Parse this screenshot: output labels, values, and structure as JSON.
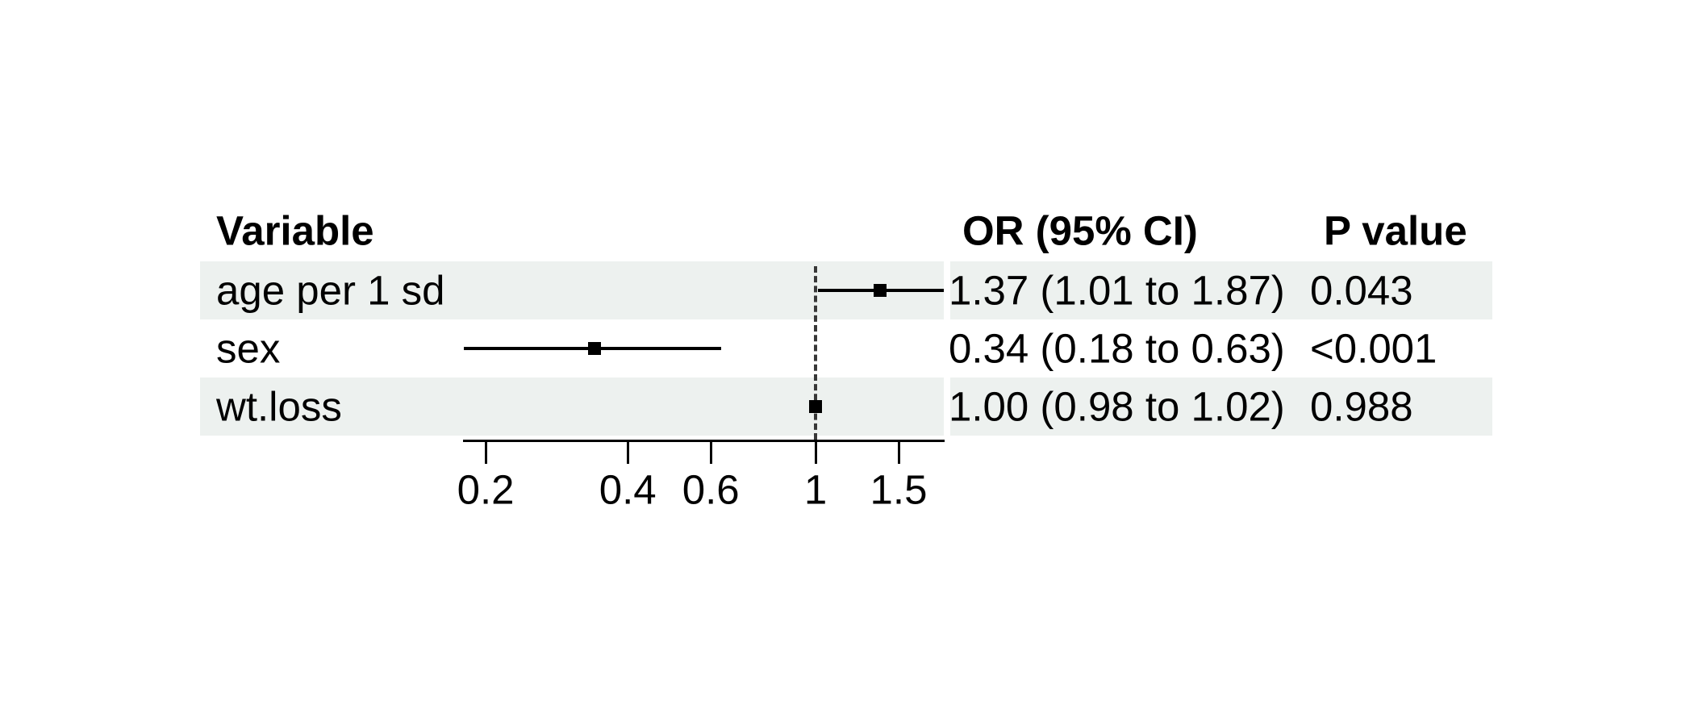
{
  "chart_data": {
    "type": "forest",
    "title": "",
    "columns": {
      "variable": "Variable",
      "or_ci": "OR (95% CI)",
      "p": "P value"
    },
    "rows": [
      {
        "variable": "age per 1 sd",
        "or": 1.37,
        "ci_low": 1.01,
        "ci_high": 1.87,
        "or_ci_label": "1.37 (1.01 to 1.87)",
        "p_label": "0.043",
        "shaded": true
      },
      {
        "variable": "sex",
        "or": 0.34,
        "ci_low": 0.18,
        "ci_high": 0.63,
        "or_ci_label": "0.34 (0.18 to 0.63)",
        "p_label": "<0.001",
        "shaded": false
      },
      {
        "variable": "wt.loss",
        "or": 1.0,
        "ci_low": 0.98,
        "ci_high": 1.02,
        "or_ci_label": "1.00 (0.98 to 1.02)",
        "p_label": "0.988",
        "shaded": true
      }
    ],
    "x_axis": {
      "scale": "log",
      "ticks": [
        0.2,
        0.4,
        0.6,
        1,
        1.5
      ],
      "tick_labels": [
        "0.2",
        "0.4",
        "0.6",
        "1",
        "1.5"
      ],
      "reference_line": 1
    },
    "legend": null,
    "colors": {
      "stripe": "#edf1ef",
      "line": "#000000",
      "marker": "#000000",
      "reference": "#383838"
    }
  }
}
